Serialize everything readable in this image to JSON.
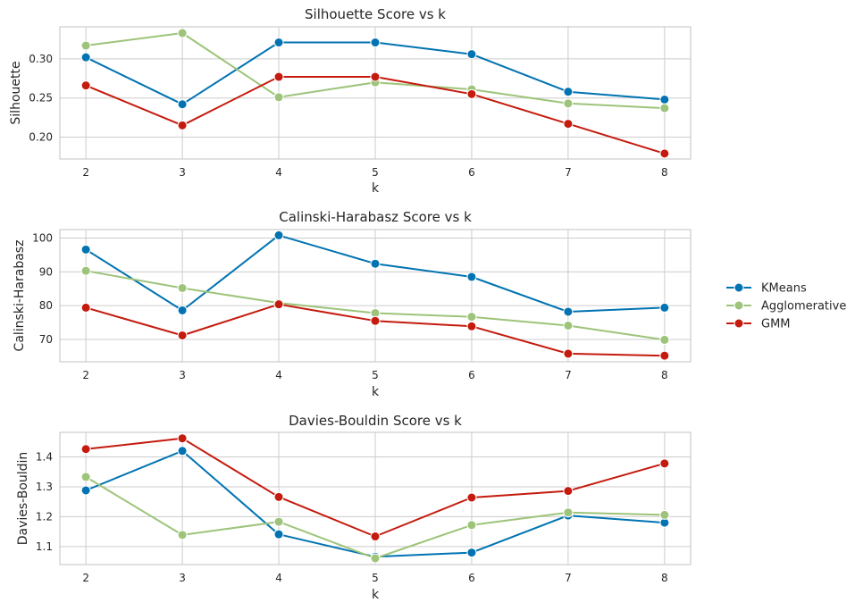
{
  "chart_data": [
    {
      "type": "line",
      "title": "Silhouette Score vs k",
      "xlabel": "k",
      "ylabel": "Silhouette",
      "x": [
        2,
        3,
        4,
        5,
        6,
        7,
        8
      ],
      "xticks": [
        "2",
        "3",
        "4",
        "5",
        "6",
        "7",
        "8"
      ],
      "yticks": [
        0.2,
        0.25,
        0.3
      ],
      "ytick_labels": [
        "0.20",
        "0.25",
        "0.30"
      ],
      "ylim": [
        0.172,
        0.341
      ],
      "grid": true,
      "series": [
        {
          "name": "KMeans",
          "color": "#0173b2",
          "values": [
            0.302,
            0.242,
            0.321,
            0.321,
            0.306,
            0.258,
            0.248
          ]
        },
        {
          "name": "Agglomerative",
          "color": "#9dc47a",
          "values": [
            0.317,
            0.333,
            0.251,
            0.27,
            0.261,
            0.243,
            0.237
          ]
        },
        {
          "name": "GMM",
          "color": "#c41b0e",
          "values": [
            0.266,
            0.215,
            0.277,
            0.277,
            0.255,
            0.217,
            0.179
          ]
        }
      ]
    },
    {
      "type": "line",
      "title": "Calinski-Harabasz Score vs k",
      "xlabel": "k",
      "ylabel": "Calinski-Harabasz",
      "x": [
        2,
        3,
        4,
        5,
        6,
        7,
        8
      ],
      "xticks": [
        "2",
        "3",
        "4",
        "5",
        "6",
        "7",
        "8"
      ],
      "yticks": [
        70,
        80,
        90,
        100
      ],
      "ytick_labels": [
        "70",
        "80",
        "90",
        "100"
      ],
      "ylim": [
        63.4,
        102.5
      ],
      "grid": true,
      "series": [
        {
          "name": "KMeans",
          "color": "#0173b2",
          "values": [
            96.6,
            78.6,
            100.8,
            92.4,
            88.5,
            78.2,
            79.4
          ]
        },
        {
          "name": "Agglomerative",
          "color": "#9dc47a",
          "values": [
            90.3,
            85.2,
            80.8,
            77.8,
            76.7,
            74.1,
            69.9
          ]
        },
        {
          "name": "GMM",
          "color": "#c41b0e",
          "values": [
            79.4,
            71.2,
            80.4,
            75.5,
            73.9,
            65.8,
            65.2
          ]
        }
      ]
    },
    {
      "type": "line",
      "title": "Davies-Bouldin Score vs k",
      "xlabel": "k",
      "ylabel": "Davies-Bouldin",
      "x": [
        2,
        3,
        4,
        5,
        6,
        7,
        8
      ],
      "xticks": [
        "2",
        "3",
        "4",
        "5",
        "6",
        "7",
        "8"
      ],
      "yticks": [
        1.1,
        1.2,
        1.3,
        1.4
      ],
      "ytick_labels": [
        "1.1",
        "1.2",
        "1.3",
        "1.4"
      ],
      "ylim": [
        1.04,
        1.482
      ],
      "grid": true,
      "series": [
        {
          "name": "KMeans",
          "color": "#0173b2",
          "values": [
            1.288,
            1.42,
            1.141,
            1.066,
            1.08,
            1.204,
            1.18
          ]
        },
        {
          "name": "Agglomerative",
          "color": "#9dc47a",
          "values": [
            1.333,
            1.139,
            1.183,
            1.061,
            1.172,
            1.214,
            1.206
          ]
        },
        {
          "name": "GMM",
          "color": "#c41b0e",
          "values": [
            1.426,
            1.462,
            1.266,
            1.134,
            1.264,
            1.286,
            1.378
          ]
        }
      ]
    }
  ],
  "legend": {
    "placement": "right",
    "entries": [
      {
        "label": "KMeans",
        "color": "#0173b2"
      },
      {
        "label": "Agglomerative",
        "color": "#9dc47a"
      },
      {
        "label": "GMM",
        "color": "#c41b0e"
      }
    ]
  }
}
